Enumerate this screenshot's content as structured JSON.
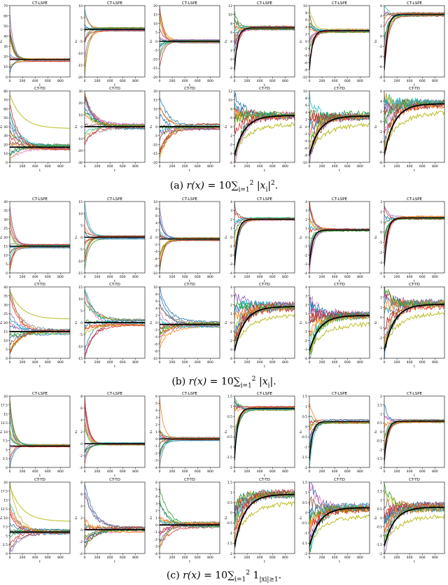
{
  "captions": [
    {
      "letter": "(a)",
      "math_lhs": "r(x)",
      "eq": "= 10",
      "sum": "∑",
      "sum_sub": "i=1",
      "sum_sup": "2",
      "body": "|x",
      "body_sub": "i",
      "body_end": "|",
      "body_sup": "2",
      "end": "."
    },
    {
      "letter": "(b)",
      "math_lhs": "r(x)",
      "eq": "= 10",
      "sum": "∑",
      "sum_sub": "i=1",
      "sum_sup": "2",
      "body": "|x",
      "body_sub": "i",
      "body_end": "|",
      "body_sup": "",
      "end": "."
    },
    {
      "letter": "(c)",
      "math_lhs": "r(x)",
      "eq": "= 10",
      "sum": "∑",
      "sum_sub": "i=1",
      "sum_sup": "2",
      "body": "1",
      "body_sub": "|xi|≥1",
      "body_end": "",
      "body_sup": "",
      "end": "."
    }
  ],
  "chart_data": {
    "type": "line",
    "panel_grid": {
      "blocks": 3,
      "rows_per_block": 2,
      "cols": 6
    },
    "row_titles": [
      "CT-LSPE",
      "CT-TD"
    ],
    "xlabel": "t",
    "ylabels": [
      "c₁",
      "c₂",
      "c₃",
      "c₄",
      "c₅",
      "c₆"
    ],
    "xlim": [
      0,
      950
    ],
    "x_ticks": [
      0,
      200,
      400,
      600,
      800
    ],
    "series_colors": [
      "#1f77b4",
      "#ff7f0e",
      "#2ca02c",
      "#d62728",
      "#9467bd",
      "#8c564b",
      "#e377c2",
      "#7f7f7f",
      "#bcbd22",
      "#17becf"
    ],
    "mean_color": "#000000",
    "blocks": [
      {
        "label": "(a)",
        "lspe": [
          {
            "ylim": [
              0,
              70
            ],
            "ticks": [
              0,
              10,
              20,
              30,
              40,
              50,
              60,
              70
            ],
            "target": 17
          },
          {
            "ylim": [
              -20,
              10
            ],
            "ticks": [
              -20,
              -15,
              -10,
              -5,
              0,
              5,
              10
            ],
            "target": 0
          },
          {
            "ylim": [
              -20,
              20
            ],
            "ticks": [
              -20,
              -15,
              -10,
              -5,
              0,
              5,
              10,
              15,
              20
            ],
            "target": 0
          },
          {
            "ylim": [
              -4,
              12
            ],
            "ticks": [
              -4,
              -2,
              0,
              2,
              4,
              6,
              8,
              10,
              12
            ],
            "target": 7
          },
          {
            "ylim": [
              -10,
              10
            ],
            "ticks": [
              -10,
              -8,
              -6,
              -4,
              -2,
              0,
              2,
              4,
              6,
              8,
              10
            ],
            "target": 3
          },
          {
            "ylim": [
              -8,
              6
            ],
            "ticks": [
              -8,
              -6,
              -4,
              -2,
              0,
              2,
              4,
              6
            ],
            "target": 4.3
          }
        ],
        "td": [
          {
            "ylim": [
              0,
              80
            ],
            "ticks": [
              0,
              10,
              20,
              30,
              40,
              50,
              60,
              70,
              80
            ],
            "target": 17,
            "outlier": 38
          },
          {
            "ylim": [
              -30,
              30
            ],
            "ticks": [
              -30,
              -20,
              -10,
              0,
              10,
              20,
              30
            ],
            "target": 0
          },
          {
            "ylim": [
              -20,
              20
            ],
            "ticks": [
              -20,
              -15,
              -10,
              -5,
              0,
              5,
              10,
              15,
              20
            ],
            "target": 0
          },
          {
            "ylim": [
              -4,
              12
            ],
            "ticks": [
              -4,
              -2,
              0,
              2,
              4,
              6,
              8,
              10,
              12
            ],
            "target": 6.5
          },
          {
            "ylim": [
              -10,
              10
            ],
            "ticks": [
              -10,
              -8,
              -6,
              -4,
              -2,
              0,
              2,
              4,
              6,
              8,
              10
            ],
            "target": 3
          },
          {
            "ylim": [
              -8,
              6
            ],
            "ticks": [
              -8,
              -6,
              -4,
              -2,
              0,
              2,
              4,
              6
            ],
            "target": 3.5
          }
        ]
      },
      {
        "label": "(b)",
        "lspe": [
          {
            "ylim": [
              0,
              40
            ],
            "ticks": [
              0,
              5,
              10,
              15,
              20,
              25,
              30,
              35,
              40
            ],
            "target": 15
          },
          {
            "ylim": [
              -15,
              15
            ],
            "ticks": [
              -15,
              -10,
              -5,
              0,
              5,
              10,
              15
            ],
            "target": 0
          },
          {
            "ylim": [
              -10,
              10
            ],
            "ticks": [
              -10,
              -8,
              -6,
              -4,
              -2,
              0,
              2,
              4,
              6,
              8,
              10
            ],
            "target": -0.5
          },
          {
            "ylim": [
              -4,
              4
            ],
            "ticks": [
              -4,
              -3,
              -2,
              -1,
              0,
              1,
              2,
              3,
              4
            ],
            "target": 2
          },
          {
            "ylim": [
              -4,
              4
            ],
            "ticks": [
              -4,
              -3,
              -2,
              -1,
              0,
              1,
              2,
              3,
              4
            ],
            "target": 0.8
          },
          {
            "ylim": [
              -4,
              3
            ],
            "ticks": [
              -4,
              -3,
              -2,
              -1,
              0,
              1,
              2,
              3
            ],
            "target": 1.4
          }
        ],
        "td": [
          {
            "ylim": [
              0,
              40
            ],
            "ticks": [
              0,
              5,
              10,
              15,
              20,
              25,
              30,
              35,
              40
            ],
            "target": 15,
            "outlier": 22
          },
          {
            "ylim": [
              -15,
              15
            ],
            "ticks": [
              -15,
              -10,
              -5,
              0,
              5,
              10,
              15
            ],
            "target": 0
          },
          {
            "ylim": [
              -10,
              10
            ],
            "ticks": [
              -10,
              -8,
              -6,
              -4,
              -2,
              0,
              2,
              4,
              6,
              8,
              10
            ],
            "target": -0.5
          },
          {
            "ylim": [
              -4,
              4
            ],
            "ticks": [
              -4,
              -3,
              -2,
              -1,
              0,
              1,
              2,
              3,
              4
            ],
            "target": 1.8
          },
          {
            "ylim": [
              -4,
              4
            ],
            "ticks": [
              -4,
              -3,
              -2,
              -1,
              0,
              1,
              2,
              3,
              4
            ],
            "target": 0.8
          },
          {
            "ylim": [
              -4,
              3
            ],
            "ticks": [
              -4,
              -3,
              -2,
              -1,
              0,
              1,
              2,
              3
            ],
            "target": 1.3
          }
        ]
      },
      {
        "label": "(c)",
        "lspe": [
          {
            "ylim": [
              0,
              20
            ],
            "ticks": [
              0.0,
              2.5,
              5.0,
              7.5,
              10.0,
              12.5,
              15.0,
              17.5,
              20.0
            ],
            "target": 6
          },
          {
            "ylim": [
              -4,
              8
            ],
            "ticks": [
              -4,
              -2,
              0,
              2,
              4,
              6,
              8
            ],
            "target": 0
          },
          {
            "ylim": [
              -4,
              6
            ],
            "ticks": [
              -4,
              -3,
              -2,
              -1,
              0,
              1,
              2,
              3,
              4,
              5,
              6
            ],
            "target": 0
          },
          {
            "ylim": [
              -2,
              1.5
            ],
            "ticks": [
              -2.0,
              -1.5,
              -1.0,
              -0.5,
              0.0,
              0.5,
              1.0,
              1.5
            ],
            "target": 0.9
          },
          {
            "ylim": [
              -2,
              1.5
            ],
            "ticks": [
              -2.0,
              -1.5,
              -1.0,
              -0.5,
              0.0,
              0.5,
              1.0,
              1.5
            ],
            "target": 0.25
          },
          {
            "ylim": [
              -2,
              2
            ],
            "ticks": [
              -2.0,
              -1.5,
              -1.0,
              -0.5,
              0.0,
              0.5,
              1.0,
              1.5,
              2.0
            ],
            "target": 0.6
          }
        ],
        "td": [
          {
            "ylim": [
              0,
              20
            ],
            "ticks": [
              0.0,
              2.5,
              5.0,
              7.5,
              10.0,
              12.5,
              15.0,
              17.5,
              20.0
            ],
            "target": 6,
            "outlier": 9
          },
          {
            "ylim": [
              -4,
              8
            ],
            "ticks": [
              -4,
              -2,
              0,
              2,
              4,
              6,
              8
            ],
            "target": 0
          },
          {
            "ylim": [
              -4,
              6
            ],
            "ticks": [
              -4,
              -3,
              -2,
              -1,
              0,
              1,
              2,
              3,
              4,
              5,
              6
            ],
            "target": 0
          },
          {
            "ylim": [
              -2,
              1.5
            ],
            "ticks": [
              -2.0,
              -1.5,
              -1.0,
              -0.5,
              0.0,
              0.5,
              1.0,
              1.5
            ],
            "target": 0.9
          },
          {
            "ylim": [
              -2,
              1.5
            ],
            "ticks": [
              -2.0,
              -1.5,
              -1.0,
              -0.5,
              0.0,
              0.5,
              1.0,
              1.5
            ],
            "target": 0.25
          },
          {
            "ylim": [
              -2,
              2
            ],
            "ticks": [
              -2.0,
              -1.5,
              -1.0,
              -0.5,
              0.0,
              0.5,
              1.0,
              1.5,
              2.0
            ],
            "target": 0.6
          }
        ]
      }
    ]
  }
}
